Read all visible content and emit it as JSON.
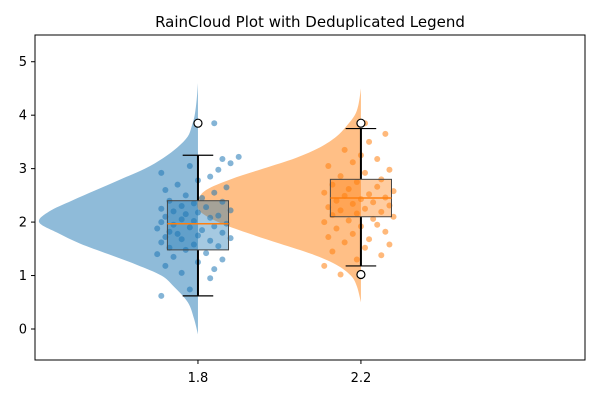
{
  "chart_data": {
    "type": "raincloud",
    "title": "RainCloud Plot with Deduplicated Legend",
    "xlabel": "",
    "ylabel": "",
    "x_ticks": [
      1.8,
      2.2
    ],
    "x_tick_labels": [
      "1.8",
      "2.2"
    ],
    "xlim": [
      1.4,
      2.75
    ],
    "ylim": [
      -0.58,
      5.5
    ],
    "y_ticks": [
      0,
      1,
      2,
      3,
      4,
      5
    ],
    "y_tick_labels": [
      "0",
      "1",
      "2",
      "3",
      "4",
      "5"
    ],
    "grid": false,
    "legend": "none",
    "series": [
      {
        "position": 1.8,
        "color": "#1f77b4",
        "cloud_side": "left",
        "kde": {
          "y": [
            -0.1,
            0.2,
            0.5,
            0.8,
            1.0,
            1.2,
            1.4,
            1.6,
            1.8,
            2.0,
            2.2,
            2.4,
            2.6,
            2.8,
            3.0,
            3.2,
            3.4,
            3.6,
            3.8,
            4.0,
            4.3,
            4.6
          ],
          "width": [
            0.0,
            0.01,
            0.025,
            0.06,
            0.09,
            0.15,
            0.22,
            0.29,
            0.345,
            0.39,
            0.365,
            0.31,
            0.25,
            0.19,
            0.13,
            0.085,
            0.05,
            0.025,
            0.015,
            0.008,
            0.003,
            0.0
          ]
        },
        "box": {
          "q1": 1.48,
          "median": 1.97,
          "q3": 2.4,
          "whisker_low": 0.62,
          "whisker_high": 3.25,
          "outliers": [
            3.85
          ]
        },
        "points": [
          [
            1.71,
            0.62
          ],
          [
            1.78,
            0.74
          ],
          [
            1.83,
            0.95
          ],
          [
            1.76,
            1.05
          ],
          [
            1.84,
            1.12
          ],
          [
            1.72,
            1.18
          ],
          [
            1.8,
            1.25
          ],
          [
            1.86,
            1.3
          ],
          [
            1.74,
            1.35
          ],
          [
            1.7,
            1.4
          ],
          [
            1.82,
            1.42
          ],
          [
            1.77,
            1.48
          ],
          [
            1.73,
            1.52
          ],
          [
            1.85,
            1.55
          ],
          [
            1.79,
            1.58
          ],
          [
            1.71,
            1.62
          ],
          [
            1.83,
            1.65
          ],
          [
            1.76,
            1.68
          ],
          [
            1.88,
            1.7
          ],
          [
            1.72,
            1.72
          ],
          [
            1.8,
            1.75
          ],
          [
            1.75,
            1.78
          ],
          [
            1.86,
            1.8
          ],
          [
            1.73,
            1.82
          ],
          [
            1.81,
            1.85
          ],
          [
            1.7,
            1.88
          ],
          [
            1.78,
            1.9
          ],
          [
            1.84,
            1.92
          ],
          [
            1.74,
            1.95
          ],
          [
            1.87,
            1.97
          ],
          [
            1.71,
            2.0
          ],
          [
            1.79,
            2.02
          ],
          [
            1.76,
            2.05
          ],
          [
            1.83,
            2.08
          ],
          [
            1.72,
            2.1
          ],
          [
            1.85,
            2.12
          ],
          [
            1.77,
            2.15
          ],
          [
            1.8,
            2.18
          ],
          [
            1.74,
            2.2
          ],
          [
            1.88,
            2.22
          ],
          [
            1.71,
            2.25
          ],
          [
            1.82,
            2.28
          ],
          [
            1.76,
            2.3
          ],
          [
            1.79,
            2.35
          ],
          [
            1.86,
            2.38
          ],
          [
            1.73,
            2.4
          ],
          [
            1.81,
            2.45
          ],
          [
            1.77,
            2.5
          ],
          [
            1.84,
            2.55
          ],
          [
            1.72,
            2.6
          ],
          [
            1.87,
            2.65
          ],
          [
            1.75,
            2.7
          ],
          [
            1.8,
            2.78
          ],
          [
            1.83,
            2.85
          ],
          [
            1.71,
            2.92
          ],
          [
            1.85,
            2.98
          ],
          [
            1.78,
            3.05
          ],
          [
            1.88,
            3.1
          ],
          [
            1.86,
            3.18
          ],
          [
            1.9,
            3.22
          ],
          [
            1.84,
            3.85
          ]
        ]
      },
      {
        "position": 2.2,
        "color": "#ff7f0e",
        "cloud_side": "left",
        "kde": {
          "y": [
            0.5,
            0.8,
            1.0,
            1.2,
            1.4,
            1.6,
            1.8,
            2.0,
            2.2,
            2.4,
            2.6,
            2.8,
            3.0,
            3.2,
            3.4,
            3.6,
            3.8,
            4.0,
            4.2,
            4.5
          ],
          "width": [
            0.0,
            0.01,
            0.025,
            0.06,
            0.12,
            0.2,
            0.28,
            0.35,
            0.395,
            0.4,
            0.38,
            0.32,
            0.24,
            0.16,
            0.1,
            0.06,
            0.035,
            0.015,
            0.006,
            0.0
          ]
        },
        "box": {
          "q1": 2.1,
          "median": 2.45,
          "q3": 2.8,
          "whisker_low": 1.18,
          "whisker_high": 3.75,
          "outliers": [
            1.02,
            3.85
          ]
        },
        "points": [
          [
            2.15,
            1.02
          ],
          [
            2.11,
            1.18
          ],
          [
            2.19,
            1.3
          ],
          [
            2.25,
            1.38
          ],
          [
            2.13,
            1.45
          ],
          [
            2.21,
            1.52
          ],
          [
            2.27,
            1.58
          ],
          [
            2.16,
            1.62
          ],
          [
            2.22,
            1.68
          ],
          [
            2.12,
            1.72
          ],
          [
            2.18,
            1.78
          ],
          [
            2.26,
            1.82
          ],
          [
            2.14,
            1.88
          ],
          [
            2.2,
            1.92
          ],
          [
            2.24,
            1.95
          ],
          [
            2.11,
            2.0
          ],
          [
            2.17,
            2.03
          ],
          [
            2.23,
            2.06
          ],
          [
            2.28,
            2.1
          ],
          [
            2.13,
            2.13
          ],
          [
            2.19,
            2.16
          ],
          [
            2.25,
            2.19
          ],
          [
            2.15,
            2.22
          ],
          [
            2.21,
            2.25
          ],
          [
            2.12,
            2.28
          ],
          [
            2.27,
            2.31
          ],
          [
            2.18,
            2.34
          ],
          [
            2.23,
            2.37
          ],
          [
            2.14,
            2.4
          ],
          [
            2.2,
            2.43
          ],
          [
            2.26,
            2.46
          ],
          [
            2.16,
            2.49
          ],
          [
            2.22,
            2.52
          ],
          [
            2.11,
            2.55
          ],
          [
            2.28,
            2.58
          ],
          [
            2.17,
            2.62
          ],
          [
            2.24,
            2.66
          ],
          [
            2.13,
            2.7
          ],
          [
            2.19,
            2.75
          ],
          [
            2.25,
            2.8
          ],
          [
            2.15,
            2.86
          ],
          [
            2.21,
            2.92
          ],
          [
            2.27,
            2.98
          ],
          [
            2.12,
            3.05
          ],
          [
            2.18,
            3.12
          ],
          [
            2.24,
            3.18
          ],
          [
            2.2,
            3.25
          ],
          [
            2.16,
            3.35
          ],
          [
            2.22,
            3.5
          ],
          [
            2.26,
            3.65
          ],
          [
            2.21,
            3.85
          ]
        ]
      }
    ]
  }
}
